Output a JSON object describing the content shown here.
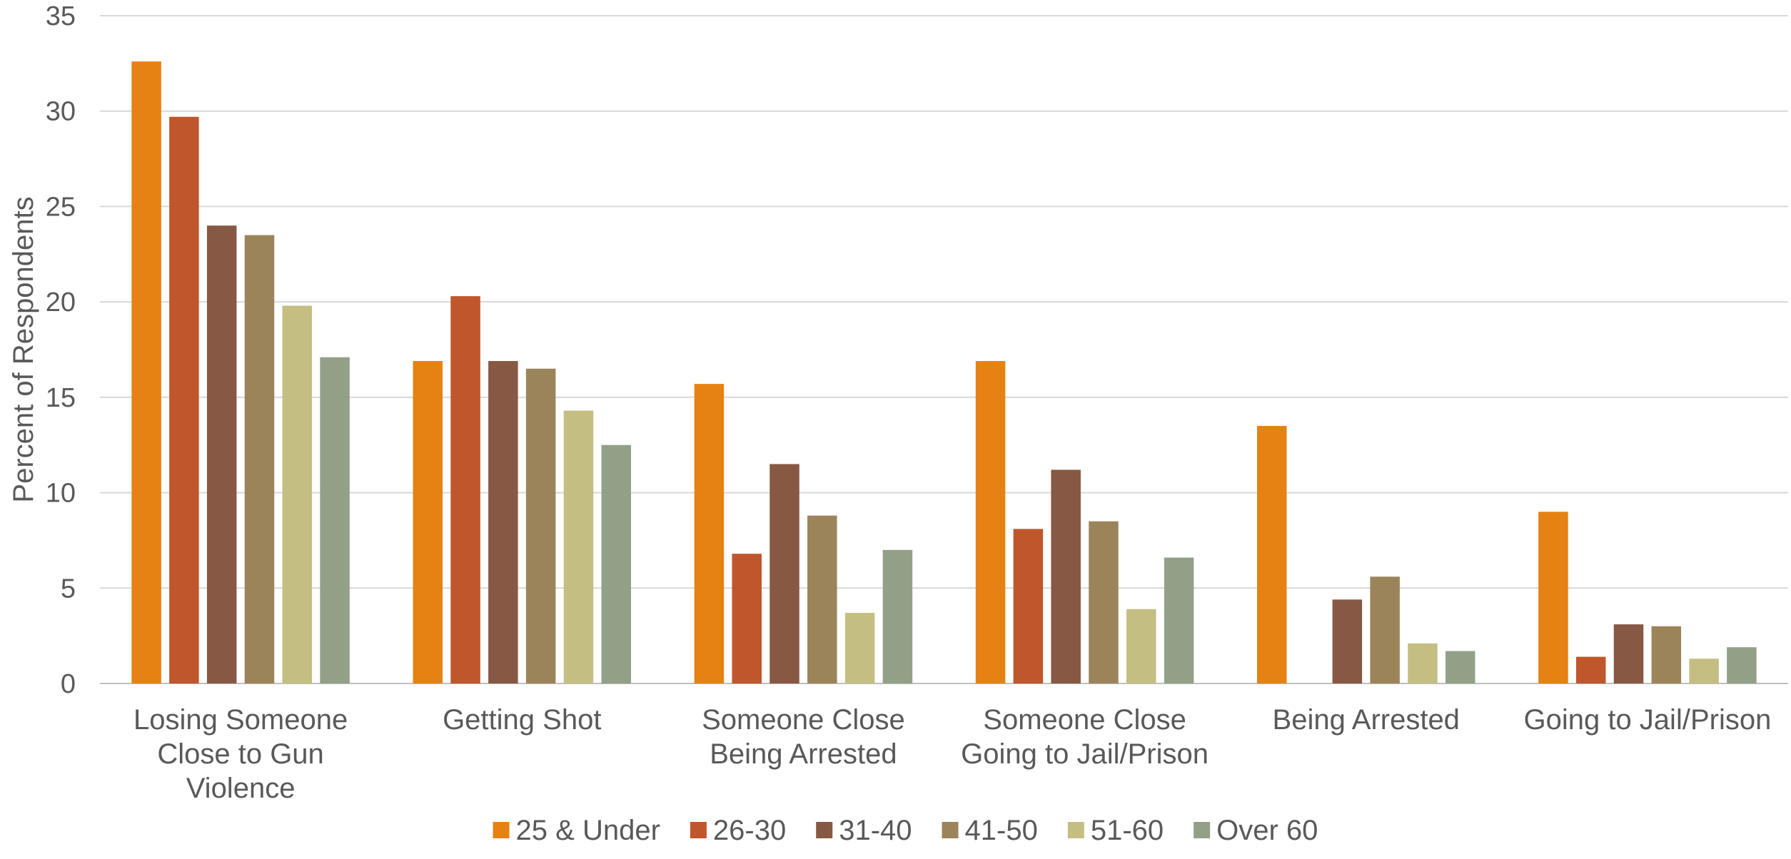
{
  "chart_data": {
    "type": "bar",
    "title": "",
    "xlabel": "",
    "ylabel": "Percent of Respondents",
    "ylim": [
      0,
      35
    ],
    "yticks": [
      0,
      5,
      10,
      15,
      20,
      25,
      30,
      35
    ],
    "grid": true,
    "legend_position": "bottom",
    "categories": [
      [
        "Losing Someone",
        "Close to Gun",
        "Violence"
      ],
      [
        "Getting Shot"
      ],
      [
        "Someone Close",
        "Being Arrested"
      ],
      [
        "Someone Close",
        "Going to Jail/Prison"
      ],
      [
        "Being Arrested"
      ],
      [
        "Going to Jail/Prison"
      ]
    ],
    "series": [
      {
        "name": "25 & Under",
        "color": "#E58213",
        "values": [
          32.6,
          16.9,
          15.7,
          16.9,
          13.5,
          9.0
        ]
      },
      {
        "name": "26-30",
        "color": "#C0562B",
        "values": [
          29.7,
          20.3,
          6.8,
          8.1,
          0.0,
          1.4
        ]
      },
      {
        "name": "31-40",
        "color": "#875843",
        "values": [
          24.0,
          16.9,
          11.5,
          11.2,
          4.4,
          3.1
        ]
      },
      {
        "name": "41-50",
        "color": "#9C845A",
        "values": [
          23.5,
          16.5,
          8.8,
          8.5,
          5.6,
          3.0
        ]
      },
      {
        "name": "51-60",
        "color": "#C5BE83",
        "values": [
          19.8,
          14.3,
          3.7,
          3.9,
          2.1,
          1.3
        ]
      },
      {
        "name": "Over 60",
        "color": "#93A088",
        "values": [
          17.1,
          12.5,
          7.0,
          6.6,
          1.7,
          1.9
        ]
      }
    ]
  }
}
